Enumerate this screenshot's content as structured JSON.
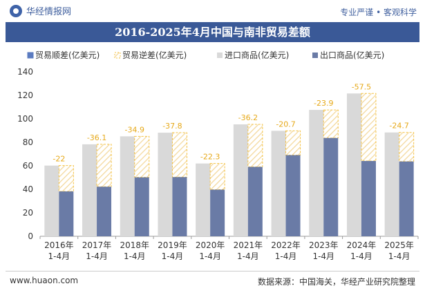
{
  "header": {
    "brand": "华经情报网",
    "tagline": "专业严谨 • 客观科学"
  },
  "footer": {
    "site": "www.huaon.com",
    "source": "数据来源：中国海关，华经产业研究院整理"
  },
  "colors": {
    "title_bg": "#3a5997",
    "import_bar": "#d9d9d9",
    "export_bar": "#6a7ba6",
    "deficit_border": "#f5c242",
    "surplus_bar": "#5b7bc0",
    "deficit_label": "#e6a817"
  },
  "chart_data": {
    "type": "bar",
    "title": "2016-2025年4月中国与南非贸易差额",
    "categories": [
      "2016年\n1-4月",
      "2017年\n1-4月",
      "2018年\n1-4月",
      "2019年\n1-4月",
      "2020年\n1-4月",
      "2021年\n1-4月",
      "2022年\n1-4月",
      "2023年\n1-4月",
      "2024年\n1-4月",
      "2025年\n1-4月"
    ],
    "ylim": [
      0,
      140
    ],
    "yticks": [
      0,
      20,
      40,
      60,
      80,
      100,
      120,
      140
    ],
    "legend_position": "top",
    "series": [
      {
        "name": "贸易顺差(亿美元)",
        "values": [
          null,
          null,
          null,
          null,
          null,
          null,
          null,
          null,
          null,
          null
        ]
      },
      {
        "name": "贸易逆差(亿美元)",
        "values": [
          -22,
          -36.1,
          -34.9,
          -37.8,
          -22.3,
          -36.2,
          -20.7,
          -23.9,
          -57.5,
          -24.7
        ]
      },
      {
        "name": "进口商品(亿美元)",
        "values": [
          60.2,
          78.3,
          85.1,
          88.2,
          62.0,
          95.3,
          89.8,
          107.6,
          121.6,
          88.4
        ]
      },
      {
        "name": "出口商品(亿美元)",
        "values": [
          38.2,
          42.2,
          50.2,
          50.4,
          39.7,
          59.1,
          69.1,
          83.7,
          64.1,
          63.7
        ]
      }
    ],
    "data_labels": [
      "-22",
      "-36.1",
      "-34.9",
      "-37.8",
      "-22.3",
      "-36.2",
      "-20.7",
      "-23.9",
      "-57.5",
      "-24.7"
    ]
  }
}
